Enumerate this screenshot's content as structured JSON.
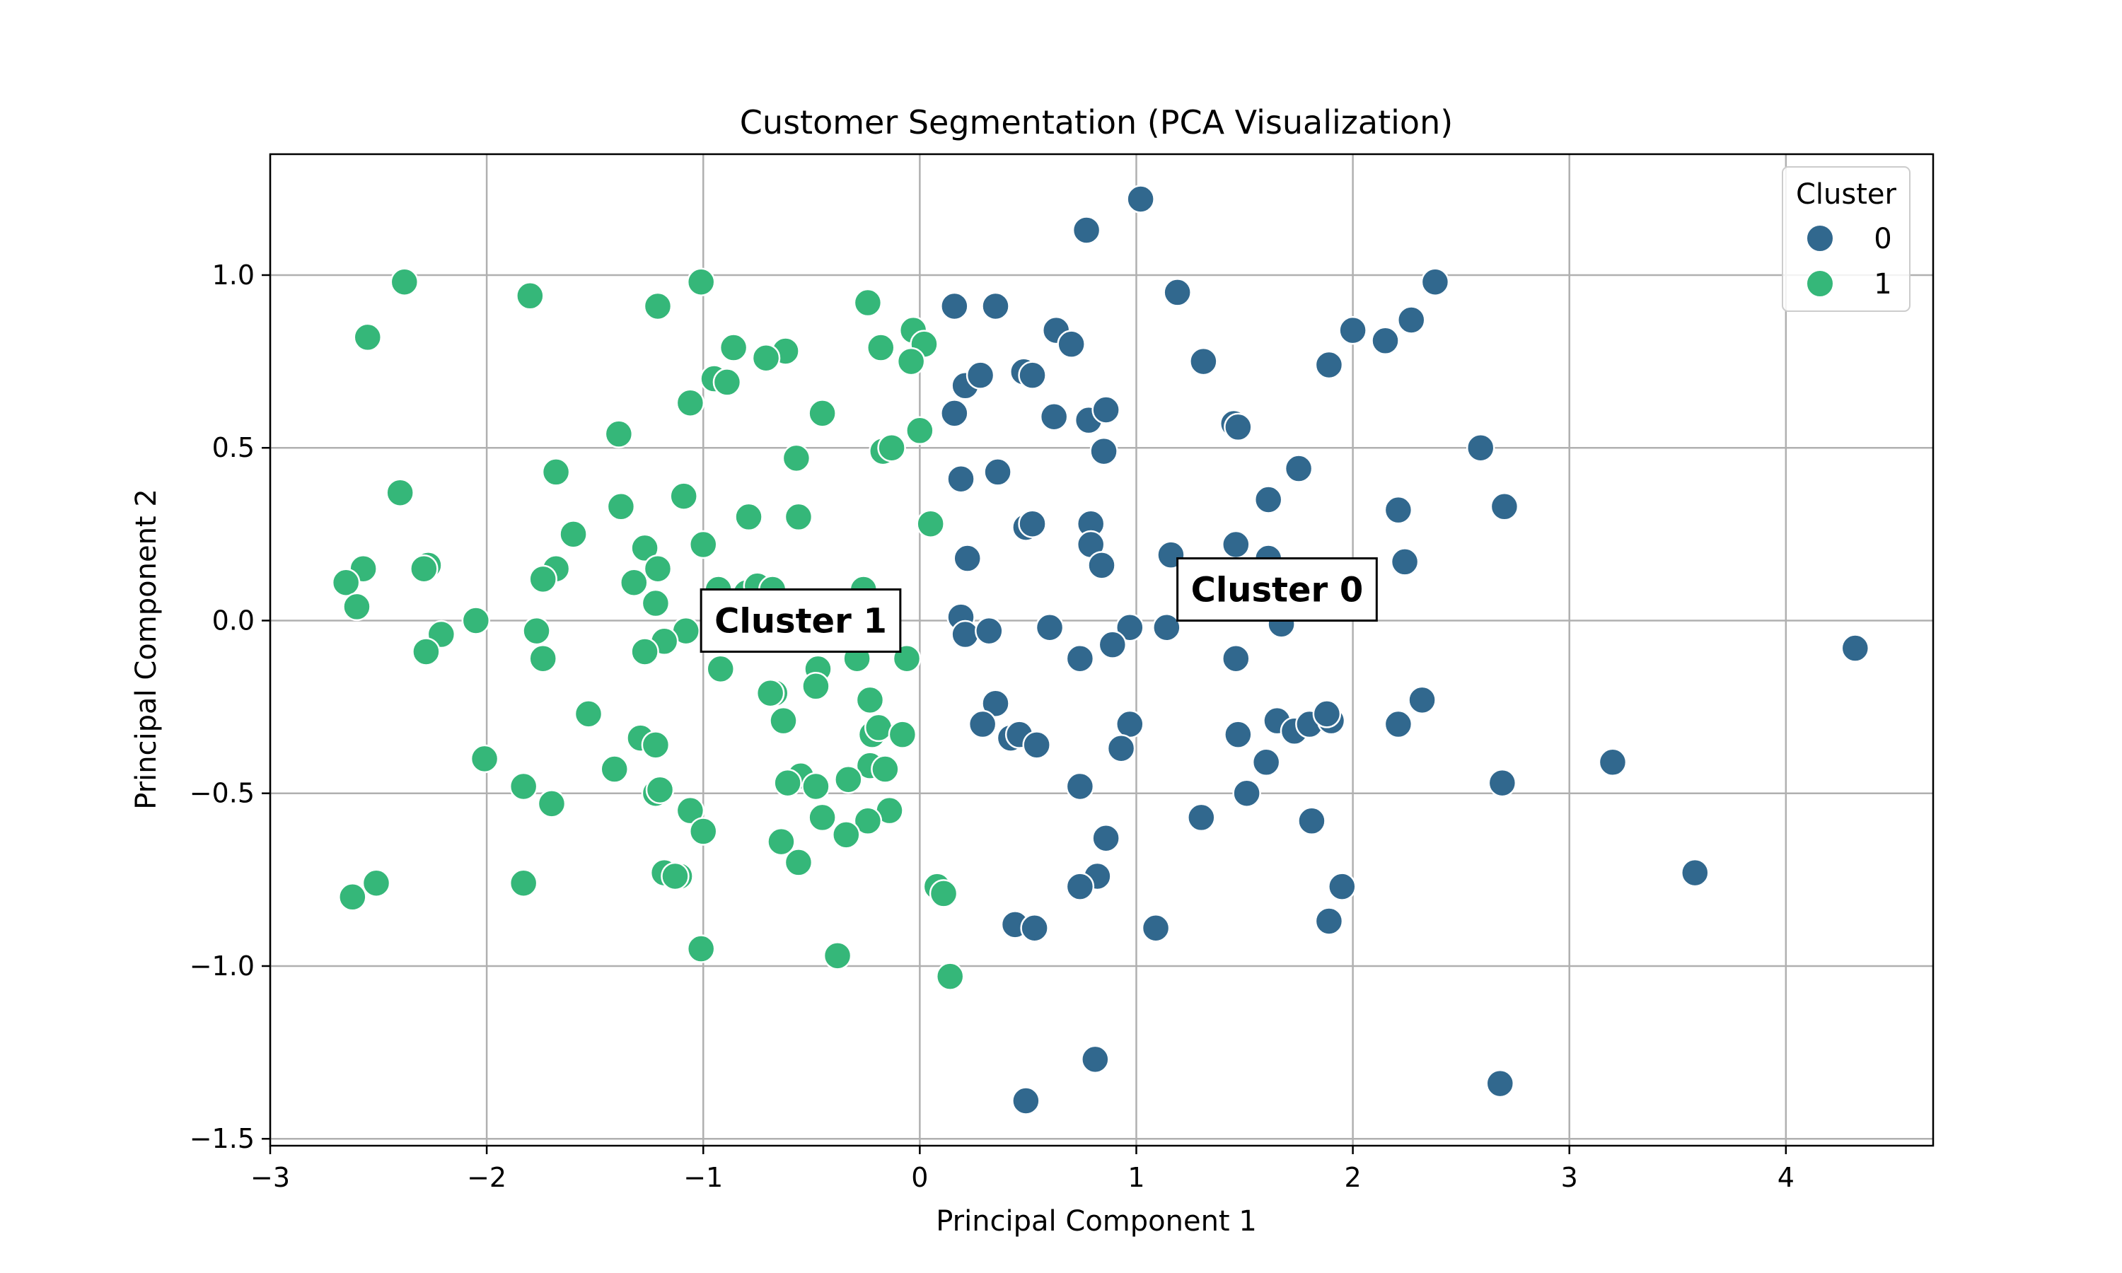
{
  "chart_data": {
    "type": "scatter",
    "title": "Customer Segmentation (PCA Visualization)",
    "xlabel": "Principal Component 1",
    "ylabel": "Principal Component 2",
    "xlim": [
      -3.0,
      4.68
    ],
    "ylim": [
      -1.52,
      1.35
    ],
    "xticks": [
      -3,
      -2,
      -1,
      0,
      1,
      2,
      3,
      4
    ],
    "xtick_labels": [
      "−3",
      "−2",
      "−1",
      "0",
      "1",
      "2",
      "3",
      "4"
    ],
    "yticks": [
      -1.5,
      -1.0,
      -0.5,
      0.0,
      0.5,
      1.0
    ],
    "ytick_labels": [
      "−1.5",
      "−1.0",
      "−0.5",
      "0.0",
      "0.5",
      "1.0"
    ],
    "grid": true,
    "legend": {
      "title": "Cluster",
      "placement": "top-right"
    },
    "colors": {
      "cluster0": "#31688e",
      "cluster1": "#35b779",
      "grid": "#b0b0b0"
    },
    "series": [
      {
        "name": "0",
        "color": "#31688e",
        "points": [
          [
            0.77,
            1.13
          ],
          [
            1.02,
            1.22
          ],
          [
            1.19,
            0.95
          ],
          [
            2.38,
            0.98
          ],
          [
            0.16,
            0.91
          ],
          [
            0.35,
            0.91
          ],
          [
            0.63,
            0.84
          ],
          [
            0.7,
            0.8
          ],
          [
            2.0,
            0.84
          ],
          [
            2.27,
            0.87
          ],
          [
            2.15,
            0.81
          ],
          [
            1.31,
            0.75
          ],
          [
            1.89,
            0.74
          ],
          [
            0.21,
            0.68
          ],
          [
            0.28,
            0.71
          ],
          [
            0.48,
            0.72
          ],
          [
            0.52,
            0.71
          ],
          [
            0.16,
            0.6
          ],
          [
            0.62,
            0.59
          ],
          [
            0.78,
            0.58
          ],
          [
            0.86,
            0.61
          ],
          [
            1.45,
            0.57
          ],
          [
            1.47,
            0.56
          ],
          [
            0.85,
            0.49
          ],
          [
            2.59,
            0.5
          ],
          [
            0.36,
            0.43
          ],
          [
            0.19,
            0.41
          ],
          [
            1.75,
            0.44
          ],
          [
            1.61,
            0.35
          ],
          [
            2.7,
            0.33
          ],
          [
            2.21,
            0.32
          ],
          [
            0.49,
            0.27
          ],
          [
            0.52,
            0.28
          ],
          [
            0.79,
            0.28
          ],
          [
            0.79,
            0.22
          ],
          [
            1.46,
            0.22
          ],
          [
            0.22,
            0.18
          ],
          [
            0.84,
            0.16
          ],
          [
            1.16,
            0.19
          ],
          [
            1.61,
            0.18
          ],
          [
            2.24,
            0.17
          ],
          [
            0.19,
            0.01
          ],
          [
            0.21,
            -0.04
          ],
          [
            0.32,
            -0.03
          ],
          [
            0.6,
            -0.02
          ],
          [
            0.97,
            -0.02
          ],
          [
            1.14,
            -0.02
          ],
          [
            1.67,
            -0.01
          ],
          [
            4.32,
            -0.08
          ],
          [
            0.74,
            -0.11
          ],
          [
            0.89,
            -0.07
          ],
          [
            1.46,
            -0.11
          ],
          [
            0.35,
            -0.24
          ],
          [
            0.29,
            -0.3
          ],
          [
            0.42,
            -0.34
          ],
          [
            0.46,
            -0.33
          ],
          [
            0.54,
            -0.36
          ],
          [
            0.97,
            -0.3
          ],
          [
            0.93,
            -0.37
          ],
          [
            1.47,
            -0.33
          ],
          [
            1.65,
            -0.29
          ],
          [
            1.73,
            -0.32
          ],
          [
            1.8,
            -0.3
          ],
          [
            1.9,
            -0.29
          ],
          [
            1.88,
            -0.27
          ],
          [
            2.21,
            -0.3
          ],
          [
            2.32,
            -0.23
          ],
          [
            1.6,
            -0.41
          ],
          [
            3.2,
            -0.41
          ],
          [
            0.74,
            -0.48
          ],
          [
            1.51,
            -0.5
          ],
          [
            2.69,
            -0.47
          ],
          [
            1.3,
            -0.57
          ],
          [
            1.81,
            -0.58
          ],
          [
            0.86,
            -0.63
          ],
          [
            3.58,
            -0.73
          ],
          [
            0.82,
            -0.74
          ],
          [
            0.74,
            -0.77
          ],
          [
            1.95,
            -0.77
          ],
          [
            0.44,
            -0.88
          ],
          [
            0.53,
            -0.89
          ],
          [
            1.09,
            -0.89
          ],
          [
            1.89,
            -0.87
          ],
          [
            0.81,
            -1.27
          ],
          [
            0.49,
            -1.39
          ],
          [
            2.68,
            -1.34
          ]
        ]
      },
      {
        "name": "1",
        "color": "#35b779",
        "points": [
          [
            -2.38,
            0.98
          ],
          [
            -1.8,
            0.94
          ],
          [
            -1.01,
            0.98
          ],
          [
            -2.55,
            0.82
          ],
          [
            -1.21,
            0.91
          ],
          [
            -0.24,
            0.92
          ],
          [
            -0.03,
            0.84
          ],
          [
            0.02,
            0.8
          ],
          [
            -0.86,
            0.79
          ],
          [
            -0.62,
            0.78
          ],
          [
            -0.18,
            0.79
          ],
          [
            -0.95,
            0.7
          ],
          [
            -0.89,
            0.69
          ],
          [
            -0.71,
            0.76
          ],
          [
            -0.04,
            0.75
          ],
          [
            -1.06,
            0.63
          ],
          [
            -0.45,
            0.6
          ],
          [
            -1.39,
            0.54
          ],
          [
            -0.17,
            0.49
          ],
          [
            -0.13,
            0.5
          ],
          [
            -0.57,
            0.47
          ],
          [
            0.0,
            0.55
          ],
          [
            -1.68,
            0.43
          ],
          [
            -2.4,
            0.37
          ],
          [
            -1.09,
            0.36
          ],
          [
            -1.38,
            0.33
          ],
          [
            -0.79,
            0.3
          ],
          [
            -0.56,
            0.3
          ],
          [
            0.05,
            0.28
          ],
          [
            -1.6,
            0.25
          ],
          [
            -1.27,
            0.21
          ],
          [
            -1.0,
            0.22
          ],
          [
            -2.27,
            0.16
          ],
          [
            -2.29,
            0.15
          ],
          [
            -2.57,
            0.15
          ],
          [
            -1.68,
            0.15
          ],
          [
            -1.21,
            0.15
          ],
          [
            -2.65,
            0.11
          ],
          [
            -1.74,
            0.12
          ],
          [
            -1.32,
            0.11
          ],
          [
            -0.93,
            0.09
          ],
          [
            -0.8,
            0.08
          ],
          [
            -0.75,
            0.1
          ],
          [
            -0.68,
            0.09
          ],
          [
            -0.26,
            0.09
          ],
          [
            -2.6,
            0.04
          ],
          [
            -1.22,
            0.05
          ],
          [
            -2.05,
            0.0
          ],
          [
            -2.21,
            -0.04
          ],
          [
            -1.77,
            -0.03
          ],
          [
            -1.08,
            -0.03
          ],
          [
            -1.18,
            -0.06
          ],
          [
            -2.28,
            -0.09
          ],
          [
            -1.27,
            -0.09
          ],
          [
            -1.74,
            -0.11
          ],
          [
            -0.29,
            -0.11
          ],
          [
            -0.06,
            -0.11
          ],
          [
            -0.92,
            -0.14
          ],
          [
            -0.47,
            -0.14
          ],
          [
            -0.48,
            -0.19
          ],
          [
            -0.67,
            -0.21
          ],
          [
            -0.69,
            -0.21
          ],
          [
            -1.53,
            -0.27
          ],
          [
            -0.63,
            -0.29
          ],
          [
            -0.23,
            -0.23
          ],
          [
            -0.22,
            -0.33
          ],
          [
            -0.19,
            -0.31
          ],
          [
            -0.08,
            -0.33
          ],
          [
            -1.29,
            -0.34
          ],
          [
            -1.22,
            -0.36
          ],
          [
            -2.01,
            -0.4
          ],
          [
            -1.41,
            -0.43
          ],
          [
            -0.23,
            -0.42
          ],
          [
            -0.16,
            -0.43
          ],
          [
            -0.55,
            -0.45
          ],
          [
            -0.61,
            -0.47
          ],
          [
            -0.48,
            -0.48
          ],
          [
            -0.33,
            -0.46
          ],
          [
            -1.83,
            -0.48
          ],
          [
            -1.22,
            -0.5
          ],
          [
            -1.2,
            -0.49
          ],
          [
            -1.7,
            -0.53
          ],
          [
            -1.06,
            -0.55
          ],
          [
            -0.14,
            -0.55
          ],
          [
            -0.45,
            -0.57
          ],
          [
            -0.24,
            -0.58
          ],
          [
            -1.0,
            -0.61
          ],
          [
            -0.64,
            -0.64
          ],
          [
            -0.34,
            -0.62
          ],
          [
            -0.56,
            -0.7
          ],
          [
            -1.18,
            -0.73
          ],
          [
            -1.11,
            -0.74
          ],
          [
            -1.13,
            -0.74
          ],
          [
            -2.51,
            -0.76
          ],
          [
            -2.62,
            -0.8
          ],
          [
            -1.83,
            -0.76
          ],
          [
            0.08,
            -0.77
          ],
          [
            0.11,
            -0.79
          ],
          [
            -1.01,
            -0.95
          ],
          [
            -0.38,
            -0.97
          ],
          [
            0.14,
            -1.03
          ]
        ]
      }
    ],
    "annotations": [
      {
        "text": "Cluster 1",
        "x": -0.55,
        "y": 0.0
      },
      {
        "text": "Cluster 0",
        "x": 1.65,
        "y": 0.09
      }
    ]
  }
}
